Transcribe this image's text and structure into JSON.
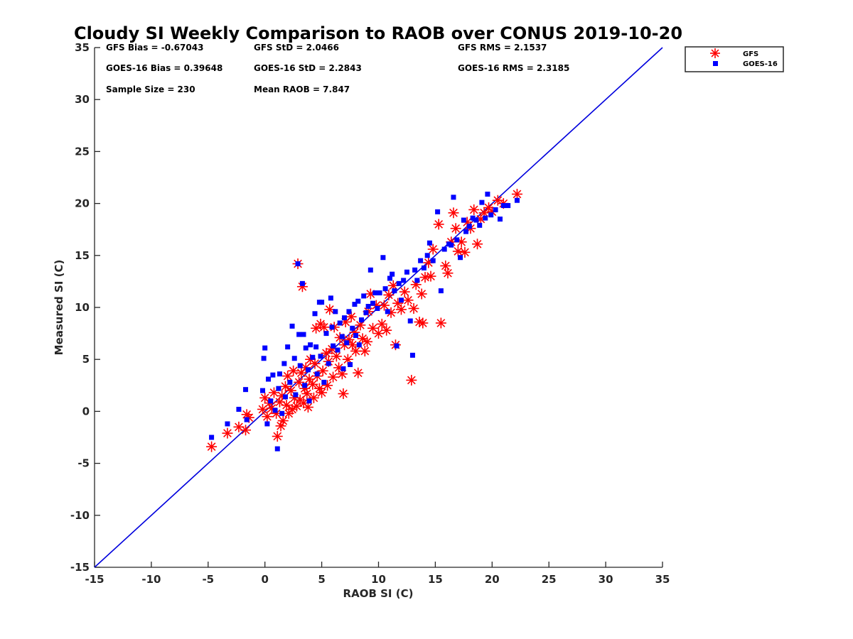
{
  "chart_data": {
    "type": "scatter",
    "title": "Cloudy SI Weekly Comparison to RAOB over CONUS 2019-10-20",
    "xlabel": "RAOB SI (C)",
    "ylabel": "Measured SI (C)",
    "xlim": [
      -15,
      35
    ],
    "ylim": [
      -15,
      35
    ],
    "xticks": [
      -15,
      -10,
      -5,
      0,
      5,
      10,
      15,
      20,
      25,
      30,
      35
    ],
    "yticks": [
      -15,
      -10,
      -5,
      0,
      5,
      10,
      15,
      20,
      25,
      30,
      35
    ],
    "grid": false,
    "legend_position": "top-right outside",
    "reference_line": {
      "from": [
        -15,
        -15
      ],
      "to": [
        35,
        35
      ],
      "color": "#0000dd"
    },
    "stats": {
      "gfs_bias": "GFS Bias = -0.67043",
      "gfs_std": "GFS StD = 2.0466",
      "gfs_rms": "GFS RMS = 2.1537",
      "goes_bias": "GOES-16 Bias = 0.39648",
      "goes_std": "GOES-16 StD = 2.2843",
      "goes_rms": "GOES-16 RMS = 2.3185",
      "sample_size": "Sample Size = 230",
      "mean_raob": "Mean RAOB = 7.847"
    },
    "series": [
      {
        "name": "GFS",
        "marker": "asterisk",
        "color": "#ff0000",
        "points": [
          [
            -4.7,
            -3.4
          ],
          [
            -3.3,
            -2.1
          ],
          [
            -2.3,
            -1.5
          ],
          [
            -1.7,
            -1.8
          ],
          [
            -1.6,
            -0.3
          ],
          [
            -1.4,
            -0.6
          ],
          [
            -0.2,
            0.2
          ],
          [
            0.0,
            1.3
          ],
          [
            0.2,
            -0.5
          ],
          [
            0.4,
            0.8
          ],
          [
            0.6,
            0.3
          ],
          [
            0.8,
            1.8
          ],
          [
            1.0,
            -0.2
          ],
          [
            1.1,
            -2.4
          ],
          [
            1.3,
            0.9
          ],
          [
            1.4,
            -1.4
          ],
          [
            1.5,
            1.5
          ],
          [
            1.6,
            -0.9
          ],
          [
            1.8,
            2.4
          ],
          [
            1.9,
            0.6
          ],
          [
            2.0,
            3.4
          ],
          [
            2.1,
            -0.2
          ],
          [
            2.3,
            2.0
          ],
          [
            2.4,
            0.2
          ],
          [
            2.5,
            3.9
          ],
          [
            2.6,
            1.3
          ],
          [
            2.8,
            0.5
          ],
          [
            2.9,
            14.2
          ],
          [
            3.0,
            2.8
          ],
          [
            3.1,
            1.1
          ],
          [
            3.2,
            3.7
          ],
          [
            3.3,
            12.0
          ],
          [
            3.4,
            0.8
          ],
          [
            3.5,
            2.2
          ],
          [
            3.6,
            4.2
          ],
          [
            3.7,
            1.7
          ],
          [
            3.8,
            0.4
          ],
          [
            3.9,
            3.1
          ],
          [
            4.0,
            5.0
          ],
          [
            4.2,
            2.6
          ],
          [
            4.3,
            1.3
          ],
          [
            4.4,
            4.6
          ],
          [
            4.5,
            8.0
          ],
          [
            4.6,
            3.4
          ],
          [
            4.8,
            2.2
          ],
          [
            4.9,
            8.4
          ],
          [
            5.0,
            1.8
          ],
          [
            5.1,
            3.9
          ],
          [
            5.2,
            8.1
          ],
          [
            5.4,
            5.6
          ],
          [
            5.5,
            2.5
          ],
          [
            5.6,
            4.8
          ],
          [
            5.7,
            9.8
          ],
          [
            5.9,
            6.0
          ],
          [
            6.0,
            3.3
          ],
          [
            6.1,
            8.1
          ],
          [
            6.3,
            5.3
          ],
          [
            6.5,
            4.2
          ],
          [
            6.6,
            7.1
          ],
          [
            6.8,
            3.6
          ],
          [
            6.9,
            1.7
          ],
          [
            7.0,
            6.4
          ],
          [
            7.1,
            8.6
          ],
          [
            7.3,
            5.0
          ],
          [
            7.4,
            6.9
          ],
          [
            7.6,
            9.1
          ],
          [
            7.7,
            6.4
          ],
          [
            7.9,
            7.6
          ],
          [
            8.0,
            5.8
          ],
          [
            8.2,
            3.7
          ],
          [
            8.4,
            8.3
          ],
          [
            8.6,
            7.0
          ],
          [
            8.8,
            5.8
          ],
          [
            9.0,
            6.7
          ],
          [
            9.1,
            9.6
          ],
          [
            9.3,
            11.3
          ],
          [
            9.5,
            8.0
          ],
          [
            9.8,
            10.2
          ],
          [
            10.0,
            7.5
          ],
          [
            10.3,
            8.4
          ],
          [
            10.5,
            10.2
          ],
          [
            10.7,
            7.8
          ],
          [
            10.9,
            11.2
          ],
          [
            11.1,
            9.5
          ],
          [
            11.3,
            12.1
          ],
          [
            11.5,
            6.4
          ],
          [
            11.7,
            10.4
          ],
          [
            12.0,
            9.8
          ],
          [
            12.3,
            11.5
          ],
          [
            12.6,
            10.7
          ],
          [
            12.9,
            3.0
          ],
          [
            13.1,
            9.9
          ],
          [
            13.3,
            12.2
          ],
          [
            13.6,
            8.6
          ],
          [
            13.8,
            11.3
          ],
          [
            13.9,
            8.5
          ],
          [
            14.1,
            12.9
          ],
          [
            14.4,
            14.3
          ],
          [
            14.6,
            13.0
          ],
          [
            14.8,
            15.6
          ],
          [
            15.3,
            18.0
          ],
          [
            15.5,
            8.5
          ],
          [
            15.9,
            14.0
          ],
          [
            16.1,
            13.3
          ],
          [
            16.4,
            16.3
          ],
          [
            16.6,
            19.1
          ],
          [
            16.8,
            17.6
          ],
          [
            17.0,
            15.4
          ],
          [
            17.3,
            16.3
          ],
          [
            17.6,
            15.3
          ],
          [
            17.8,
            18.2
          ],
          [
            18.1,
            17.6
          ],
          [
            18.4,
            19.4
          ],
          [
            18.7,
            16.1
          ],
          [
            19.0,
            18.5
          ],
          [
            19.3,
            19.1
          ],
          [
            19.7,
            19.6
          ],
          [
            20.0,
            19.2
          ],
          [
            20.5,
            20.3
          ],
          [
            21.0,
            20.0
          ],
          [
            22.2,
            20.9
          ]
        ]
      },
      {
        "name": "GOES-16",
        "marker": "square",
        "color": "#0000ff",
        "points": [
          [
            -4.7,
            -2.5
          ],
          [
            -3.3,
            -1.2
          ],
          [
            -2.3,
            0.2
          ],
          [
            -1.7,
            2.1
          ],
          [
            -1.6,
            -0.8
          ],
          [
            -0.2,
            2.0
          ],
          [
            -0.1,
            5.1
          ],
          [
            0.0,
            6.1
          ],
          [
            0.2,
            -1.2
          ],
          [
            0.3,
            3.1
          ],
          [
            0.5,
            1.0
          ],
          [
            0.7,
            3.5
          ],
          [
            0.9,
            0.1
          ],
          [
            1.1,
            -3.6
          ],
          [
            1.2,
            2.2
          ],
          [
            1.3,
            3.6
          ],
          [
            1.5,
            -0.2
          ],
          [
            1.7,
            4.6
          ],
          [
            1.8,
            1.4
          ],
          [
            2.0,
            6.2
          ],
          [
            2.2,
            2.8
          ],
          [
            2.4,
            8.2
          ],
          [
            2.6,
            5.1
          ],
          [
            2.7,
            1.6
          ],
          [
            2.9,
            14.2
          ],
          [
            3.0,
            7.4
          ],
          [
            3.1,
            4.4
          ],
          [
            3.3,
            12.3
          ],
          [
            3.4,
            7.4
          ],
          [
            3.5,
            2.5
          ],
          [
            3.6,
            6.1
          ],
          [
            3.8,
            4.0
          ],
          [
            3.9,
            1.0
          ],
          [
            4.0,
            6.4
          ],
          [
            4.2,
            5.2
          ],
          [
            4.4,
            9.4
          ],
          [
            4.5,
            6.2
          ],
          [
            4.6,
            3.6
          ],
          [
            4.8,
            10.5
          ],
          [
            4.9,
            5.3
          ],
          [
            5.0,
            10.5
          ],
          [
            5.2,
            2.8
          ],
          [
            5.4,
            7.5
          ],
          [
            5.6,
            4.6
          ],
          [
            5.8,
            10.9
          ],
          [
            5.9,
            8.1
          ],
          [
            6.0,
            6.3
          ],
          [
            6.2,
            9.6
          ],
          [
            6.4,
            5.9
          ],
          [
            6.6,
            8.5
          ],
          [
            6.8,
            7.2
          ],
          [
            6.9,
            4.1
          ],
          [
            7.0,
            9.0
          ],
          [
            7.2,
            6.6
          ],
          [
            7.4,
            9.6
          ],
          [
            7.5,
            4.5
          ],
          [
            7.7,
            8.0
          ],
          [
            7.9,
            10.3
          ],
          [
            8.0,
            7.3
          ],
          [
            8.2,
            10.6
          ],
          [
            8.3,
            6.4
          ],
          [
            8.5,
            8.8
          ],
          [
            8.7,
            11.1
          ],
          [
            8.9,
            9.5
          ],
          [
            9.1,
            10.1
          ],
          [
            9.3,
            13.6
          ],
          [
            9.5,
            10.4
          ],
          [
            9.7,
            11.4
          ],
          [
            9.9,
            9.9
          ],
          [
            10.1,
            11.4
          ],
          [
            10.4,
            14.8
          ],
          [
            10.6,
            11.8
          ],
          [
            10.8,
            9.6
          ],
          [
            11.0,
            12.8
          ],
          [
            11.2,
            13.2
          ],
          [
            11.4,
            11.6
          ],
          [
            11.6,
            6.3
          ],
          [
            11.8,
            12.3
          ],
          [
            12.0,
            10.7
          ],
          [
            12.2,
            12.6
          ],
          [
            12.5,
            13.4
          ],
          [
            12.8,
            8.7
          ],
          [
            13.0,
            5.4
          ],
          [
            13.2,
            13.6
          ],
          [
            13.4,
            12.6
          ],
          [
            13.7,
            14.5
          ],
          [
            14.0,
            13.8
          ],
          [
            14.3,
            15.0
          ],
          [
            14.5,
            16.2
          ],
          [
            14.8,
            14.5
          ],
          [
            15.2,
            19.2
          ],
          [
            15.5,
            11.6
          ],
          [
            15.8,
            15.6
          ],
          [
            16.2,
            16.1
          ],
          [
            16.4,
            16.0
          ],
          [
            16.6,
            20.6
          ],
          [
            16.9,
            16.5
          ],
          [
            17.2,
            14.8
          ],
          [
            17.5,
            18.4
          ],
          [
            17.7,
            17.3
          ],
          [
            18.0,
            17.8
          ],
          [
            18.3,
            18.6
          ],
          [
            18.6,
            18.4
          ],
          [
            18.9,
            17.9
          ],
          [
            19.1,
            20.1
          ],
          [
            19.4,
            18.6
          ],
          [
            19.6,
            20.9
          ],
          [
            19.9,
            18.9
          ],
          [
            20.3,
            19.4
          ],
          [
            20.7,
            18.5
          ],
          [
            21.0,
            19.8
          ],
          [
            21.4,
            19.8
          ],
          [
            22.2,
            20.3
          ]
        ]
      }
    ]
  }
}
